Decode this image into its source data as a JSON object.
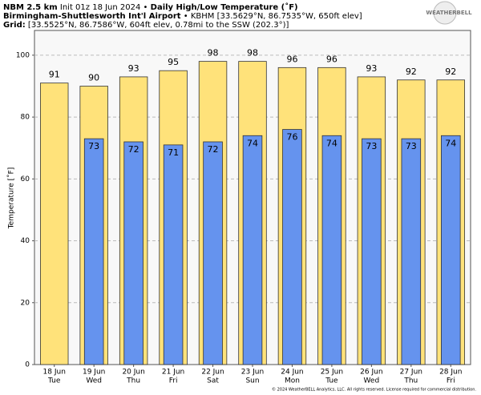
{
  "header": {
    "model": "NBM 2.5 km",
    "init": "Init 01z 18 Jun 2024 •",
    "product": "Daily High/Low Temperature (˚F)",
    "station": "Birmingham-Shuttlesworth Int'l Airport",
    "station_info": "• KBHM [33.5629°N, 86.7535°W, 650ft elev]",
    "grid_label": "Grid:",
    "grid_info": "[33.5525°N, 86.7586°W, 604ft elev, 0.78mi to the SSW (202.3°)]",
    "logo": "WEATHERBELL"
  },
  "footer": "© 2024 WeatherBELL Analytics, LLC. All rights reserved. License required for commercial distribution.",
  "chart_data": {
    "type": "bar",
    "y_label": "Temperature [˚F]",
    "categories": [
      "18 Jun",
      "19 Jun",
      "20 Jun",
      "21 Jun",
      "22 Jun",
      "23 Jun",
      "24 Jun",
      "25 Jun",
      "26 Jun",
      "27 Jun",
      "28 Jun"
    ],
    "weekdays": [
      "Tue",
      "Wed",
      "Thu",
      "Fri",
      "Sat",
      "Sun",
      "Mon",
      "Tue",
      "Wed",
      "Thu",
      "Fri"
    ],
    "series": [
      {
        "color": "#ffe27a",
        "values": [
          91,
          90,
          93,
          95,
          98,
          98,
          96,
          96,
          93,
          92,
          92
        ]
      },
      {
        "color": "#6593ee",
        "values": [
          null,
          73,
          72,
          71,
          72,
          74,
          76,
          74,
          73,
          73,
          74
        ]
      }
    ],
    "ylim": [
      0,
      108
    ],
    "yticks": [
      0,
      20,
      40,
      60,
      80,
      100
    ],
    "grid": true
  }
}
